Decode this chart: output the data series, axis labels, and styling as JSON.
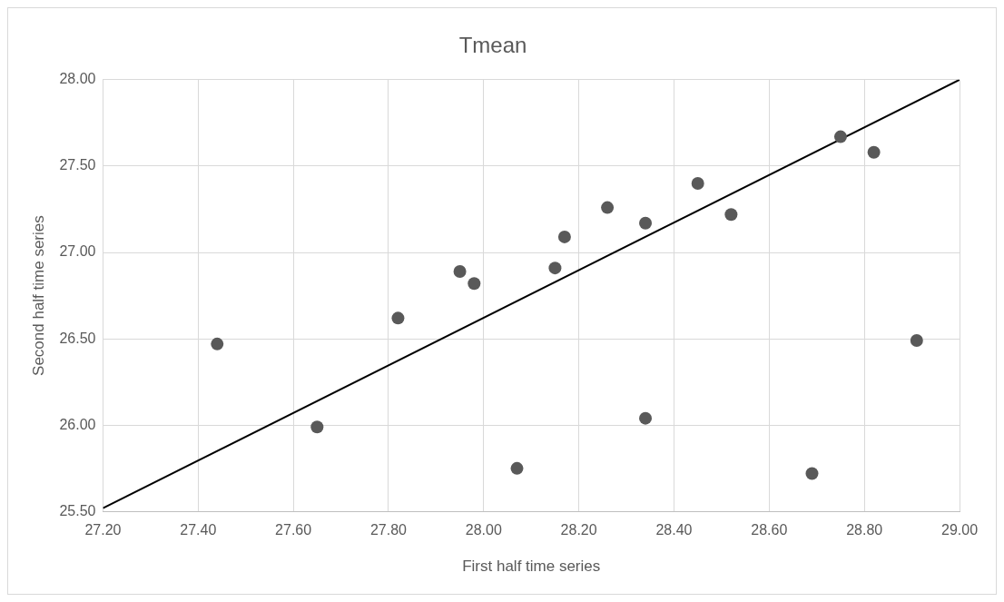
{
  "chart_data": {
    "type": "scatter",
    "title": "Tmean",
    "xlabel": "First half time series",
    "ylabel": "Second half time series",
    "xlim": [
      27.2,
      29.0
    ],
    "xticks": [
      {
        "value": 27.2,
        "label": "27.20"
      },
      {
        "value": 27.4,
        "label": "27.40"
      },
      {
        "value": 27.6,
        "label": "27.60"
      },
      {
        "value": 27.8,
        "label": "27.80"
      },
      {
        "value": 28.0,
        "label": "28.00"
      },
      {
        "value": 28.2,
        "label": "28.20"
      },
      {
        "value": 28.4,
        "label": "28.40"
      },
      {
        "value": 28.6,
        "label": "28.60"
      },
      {
        "value": 28.8,
        "label": "28.80"
      },
      {
        "value": 29.0,
        "label": "29.00"
      }
    ],
    "ylim": [
      25.5,
      28.0
    ],
    "yticks": [
      {
        "value": 25.5,
        "label": "25.50"
      },
      {
        "value": 26.0,
        "label": "26.00"
      },
      {
        "value": 26.5,
        "label": "26.50"
      },
      {
        "value": 27.0,
        "label": "27.00"
      },
      {
        "value": 27.5,
        "label": "27.50"
      },
      {
        "value": 28.0,
        "label": "28.00"
      }
    ],
    "grid": true,
    "marker": "circle",
    "series": [
      {
        "color": "#595959",
        "x": [
          27.44,
          27.65,
          27.82,
          27.95,
          27.98,
          28.07,
          28.15,
          28.17,
          28.26,
          28.34,
          28.34,
          28.45,
          28.52,
          28.69,
          28.75,
          28.82,
          28.91
        ],
        "values": [
          26.47,
          25.99,
          26.62,
          26.89,
          26.82,
          25.75,
          26.91,
          27.09,
          27.26,
          27.17,
          26.04,
          27.4,
          27.22,
          25.72,
          27.67,
          27.58,
          26.49
        ]
      },
      {
        "type": "line",
        "color": "#000000",
        "marker": "none",
        "x": [
          27.2,
          29.0
        ],
        "values": [
          25.52,
          28.0
        ]
      }
    ]
  }
}
